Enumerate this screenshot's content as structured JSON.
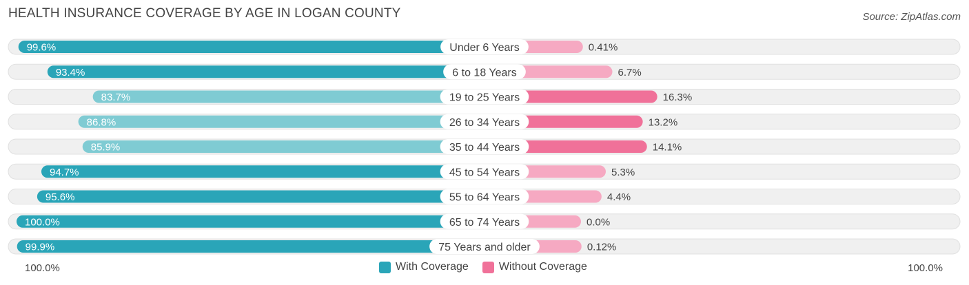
{
  "title": "HEALTH INSURANCE COVERAGE BY AGE IN LOGAN COUNTY",
  "source": "Source: ZipAtlas.com",
  "colors": {
    "with_strong": "#2aa5b8",
    "with_light": "#7fcbd3",
    "without_strong": "#f07199",
    "without_light": "#f6a9c2",
    "track": "#f0f0f0",
    "track_border": "#e0e0e0"
  },
  "chart_data": {
    "type": "bar",
    "orientation": "horizontal-diverging",
    "title": "HEALTH INSURANCE COVERAGE BY AGE IN LOGAN COUNTY",
    "categories": [
      "Under 6 Years",
      "6 to 18 Years",
      "19 to 25 Years",
      "26 to 34 Years",
      "35 to 44 Years",
      "45 to 54 Years",
      "55 to 64 Years",
      "65 to 74 Years",
      "75 Years and older"
    ],
    "series": [
      {
        "name": "With Coverage",
        "values": [
          99.6,
          93.4,
          83.7,
          86.8,
          85.9,
          94.7,
          95.6,
          100.0,
          99.9
        ],
        "labels": [
          "99.6%",
          "93.4%",
          "83.7%",
          "86.8%",
          "85.9%",
          "94.7%",
          "95.6%",
          "100.0%",
          "99.9%"
        ]
      },
      {
        "name": "Without Coverage",
        "values": [
          0.41,
          6.7,
          16.3,
          13.2,
          14.1,
          5.3,
          4.4,
          0.0,
          0.12
        ],
        "labels": [
          "0.41%",
          "6.7%",
          "16.3%",
          "13.2%",
          "14.1%",
          "5.3%",
          "4.4%",
          "0.0%",
          "0.12%"
        ]
      }
    ],
    "axis": {
      "left_label": "100.0%",
      "right_label": "100.0%"
    },
    "legend": [
      "With Coverage",
      "Without Coverage"
    ],
    "legend_position": "bottom-center"
  }
}
